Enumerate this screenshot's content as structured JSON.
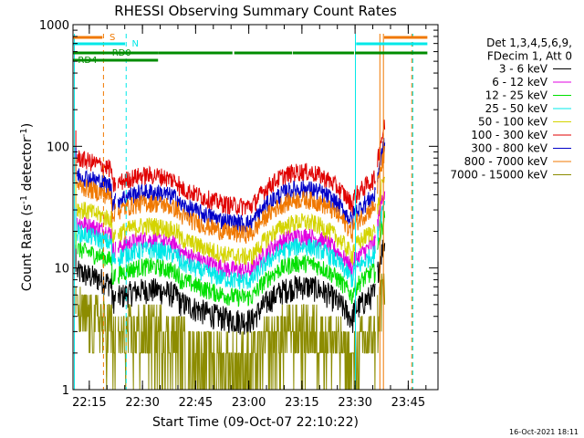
{
  "chart_data": {
    "type": "line",
    "title": "RHESSI Observing Summary Count Rates",
    "xlabel": "Start Time (09-Oct-07 22:10:22)",
    "ylabel_main": "Count Rate (s",
    "ylabel_sup1": "-1",
    "ylabel_mid": " detector",
    "ylabel_sup2": "-1",
    "ylabel_end": ")",
    "y_scale": "log",
    "ylim": [
      1,
      1000
    ],
    "y_ticks": [
      {
        "value": 1,
        "label": "1"
      },
      {
        "value": 10,
        "label": "10"
      },
      {
        "value": 100,
        "label": "100"
      },
      {
        "value": 1000,
        "label": "1000"
      }
    ],
    "xlim_minutes": [
      0,
      103
    ],
    "x_ticks": [
      {
        "value": 4.6,
        "label": "22:15"
      },
      {
        "value": 19.6,
        "label": "22:30"
      },
      {
        "value": 34.6,
        "label": "22:45"
      },
      {
        "value": 49.6,
        "label": "23:00"
      },
      {
        "value": 64.6,
        "label": "23:15"
      },
      {
        "value": 79.6,
        "label": "23:30"
      },
      {
        "value": 94.6,
        "label": "23:45"
      }
    ],
    "legend_header": [
      "Det 1,3,4,5,6,9,",
      "FDecim 1, Att 0"
    ],
    "legend_position": "right",
    "series": [
      {
        "name": "3 - 6 keV",
        "color": "#000000",
        "scale": 0.155
      },
      {
        "name": "6 - 12 keV",
        "color": "#e000e0",
        "scale": 0.4
      },
      {
        "name": "12 - 25 keV",
        "color": "#00e000",
        "scale": 0.24
      },
      {
        "name": "25 - 50 keV",
        "color": "#00e8e8",
        "scale": 0.33
      },
      {
        "name": "50 - 100 keV",
        "color": "#d4d400",
        "scale": 0.52
      },
      {
        "name": "100 - 300 keV",
        "color": "#e00000",
        "scale": 1.35
      },
      {
        "name": "300 - 800 keV",
        "color": "#0000c8",
        "scale": 0.98
      },
      {
        "name": "800 - 7000 keV",
        "color": "#f07800",
        "scale": 0.8
      },
      {
        "name": "7000 - 15000 keV",
        "color": "#8c8c00",
        "scale": 0.07
      }
    ],
    "status_flags": [
      {
        "label": "S",
        "color": "#f07800"
      },
      {
        "label": "N",
        "color": "#00e8e8"
      },
      {
        "label": "RD0",
        "color": "#008c00"
      },
      {
        "label": "RD4",
        "color": "#008c00"
      }
    ]
  },
  "footer_date": "16-Oct-2021 18:11"
}
